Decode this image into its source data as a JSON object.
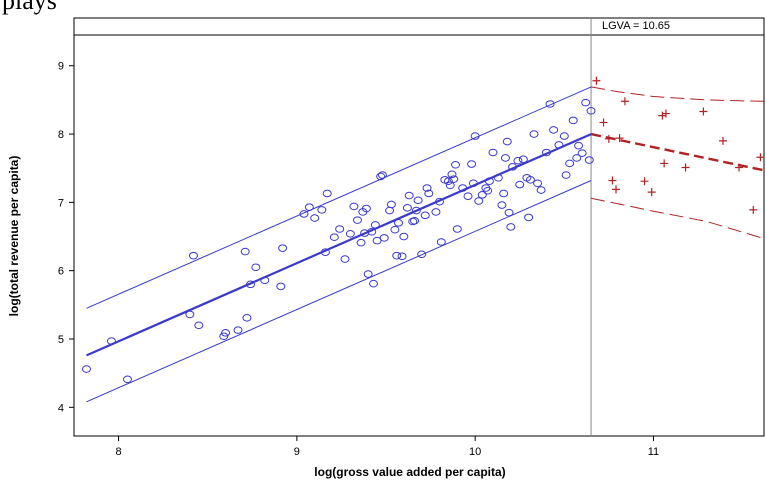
{
  "header": {
    "cropped_text": "plays"
  },
  "chart_data": {
    "type": "scatter",
    "title": "",
    "xlabel": "log(gross value added per capita)",
    "ylabel": "log(total revenue per capita)",
    "xlim": [
      7.75,
      11.62
    ],
    "ylim": [
      3.58,
      9.45
    ],
    "xticks": [
      "8",
      "9",
      "10",
      "11"
    ],
    "yticks": [
      "4",
      "5",
      "6",
      "7",
      "8",
      "9"
    ],
    "grid": false,
    "legend": "none",
    "annotation": {
      "text": "LGVA = 10.65",
      "x": 10.65
    },
    "colors": {
      "observed": "#3a3acc",
      "forecast": "#b22222",
      "frame": "#000000",
      "refline": "#888888"
    },
    "series": [
      {
        "role": "observed",
        "marker": "circle",
        "points": [
          [
            7.82,
            4.56
          ],
          [
            7.96,
            4.97
          ],
          [
            8.05,
            4.41
          ],
          [
            8.4,
            5.36
          ],
          [
            8.42,
            6.22
          ],
          [
            8.45,
            5.2
          ],
          [
            8.59,
            5.04
          ],
          [
            8.6,
            5.09
          ],
          [
            8.67,
            5.13
          ],
          [
            8.71,
            6.28
          ],
          [
            8.72,
            5.31
          ],
          [
            8.74,
            5.8
          ],
          [
            8.77,
            6.05
          ],
          [
            8.82,
            5.86
          ],
          [
            8.91,
            5.77
          ],
          [
            8.92,
            6.33
          ],
          [
            9.04,
            6.83
          ],
          [
            9.07,
            6.93
          ],
          [
            9.1,
            6.77
          ],
          [
            9.14,
            6.89
          ],
          [
            9.16,
            6.27
          ],
          [
            9.17,
            7.13
          ],
          [
            9.21,
            6.49
          ],
          [
            9.24,
            6.61
          ],
          [
            9.27,
            6.17
          ],
          [
            9.3,
            6.54
          ],
          [
            9.32,
            6.94
          ],
          [
            9.34,
            6.74
          ],
          [
            9.36,
            6.41
          ],
          [
            9.37,
            6.86
          ],
          [
            9.38,
            6.55
          ],
          [
            9.39,
            6.91
          ],
          [
            9.4,
            5.95
          ],
          [
            9.42,
            6.57
          ],
          [
            9.43,
            5.81
          ],
          [
            9.44,
            6.67
          ],
          [
            9.45,
            6.44
          ],
          [
            9.47,
            7.38
          ],
          [
            9.48,
            7.4
          ],
          [
            9.49,
            6.48
          ],
          [
            9.52,
            6.88
          ],
          [
            9.53,
            6.97
          ],
          [
            9.55,
            6.6
          ],
          [
            9.56,
            6.22
          ],
          [
            9.57,
            6.7
          ],
          [
            9.59,
            6.21
          ],
          [
            9.6,
            6.5
          ],
          [
            9.62,
            6.92
          ],
          [
            9.63,
            7.1
          ],
          [
            9.65,
            6.72
          ],
          [
            9.66,
            6.73
          ],
          [
            9.67,
            6.88
          ],
          [
            9.68,
            7.03
          ],
          [
            9.7,
            6.24
          ],
          [
            9.72,
            6.81
          ],
          [
            9.73,
            7.21
          ],
          [
            9.74,
            7.13
          ],
          [
            9.78,
            6.86
          ],
          [
            9.8,
            7.01
          ],
          [
            9.81,
            6.42
          ],
          [
            9.83,
            7.33
          ],
          [
            9.85,
            7.31
          ],
          [
            9.86,
            7.25
          ],
          [
            9.87,
            7.41
          ],
          [
            9.88,
            7.34
          ],
          [
            9.89,
            7.55
          ],
          [
            9.9,
            6.61
          ],
          [
            9.93,
            7.21
          ],
          [
            9.96,
            7.09
          ],
          [
            9.98,
            7.56
          ],
          [
            9.99,
            7.28
          ],
          [
            10.0,
            7.97
          ],
          [
            10.02,
            7.02
          ],
          [
            10.04,
            7.11
          ],
          [
            10.06,
            7.21
          ],
          [
            10.07,
            7.17
          ],
          [
            10.08,
            7.31
          ],
          [
            10.1,
            7.73
          ],
          [
            10.13,
            7.36
          ],
          [
            10.15,
            6.96
          ],
          [
            10.16,
            7.13
          ],
          [
            10.17,
            7.65
          ],
          [
            10.18,
            7.89
          ],
          [
            10.19,
            6.85
          ],
          [
            10.2,
            6.64
          ],
          [
            10.21,
            7.52
          ],
          [
            10.24,
            7.61
          ],
          [
            10.25,
            7.26
          ],
          [
            10.27,
            7.63
          ],
          [
            10.29,
            7.36
          ],
          [
            10.3,
            6.78
          ],
          [
            10.31,
            7.33
          ],
          [
            10.33,
            8.0
          ],
          [
            10.35,
            7.28
          ],
          [
            10.37,
            7.18
          ],
          [
            10.4,
            7.73
          ],
          [
            10.42,
            8.44
          ],
          [
            10.44,
            8.06
          ],
          [
            10.47,
            7.84
          ],
          [
            10.5,
            7.97
          ],
          [
            10.51,
            7.4
          ],
          [
            10.53,
            7.57
          ],
          [
            10.55,
            8.2
          ],
          [
            10.57,
            7.65
          ],
          [
            10.58,
            7.83
          ],
          [
            10.6,
            7.72
          ],
          [
            10.62,
            8.46
          ],
          [
            10.64,
            7.62
          ],
          [
            10.65,
            8.34
          ]
        ]
      },
      {
        "role": "forecast",
        "marker": "plus",
        "points": [
          [
            10.68,
            8.78
          ],
          [
            10.72,
            8.17
          ],
          [
            10.75,
            7.93
          ],
          [
            10.77,
            7.32
          ],
          [
            10.79,
            7.19
          ],
          [
            10.81,
            7.94
          ],
          [
            10.84,
            8.48
          ],
          [
            10.95,
            7.31
          ],
          [
            10.99,
            7.15
          ],
          [
            11.05,
            8.27
          ],
          [
            11.06,
            7.57
          ],
          [
            11.07,
            8.3
          ],
          [
            11.18,
            7.51
          ],
          [
            11.28,
            8.33
          ],
          [
            11.39,
            7.9
          ],
          [
            11.48,
            7.51
          ],
          [
            11.56,
            6.89
          ],
          [
            11.6,
            7.66
          ]
        ]
      }
    ],
    "lines": [
      {
        "role": "fit",
        "style": "solid",
        "width": 2.2,
        "points": [
          [
            7.82,
            4.76
          ],
          [
            10.65,
            8.0
          ]
        ]
      },
      {
        "role": "upper-band",
        "style": "thin",
        "width": 1,
        "points": [
          [
            7.82,
            5.45
          ],
          [
            10.65,
            8.69
          ]
        ]
      },
      {
        "role": "lower-band",
        "style": "thin",
        "width": 1,
        "points": [
          [
            7.82,
            4.08
          ],
          [
            10.65,
            7.32
          ]
        ]
      },
      {
        "role": "forecast-fit",
        "style": "dashed-thick",
        "width": 2.4,
        "points": [
          [
            10.65,
            8.0
          ],
          [
            11.62,
            7.47
          ]
        ]
      },
      {
        "role": "forecast-upper",
        "style": "dashed-thin",
        "width": 1,
        "points": [
          [
            10.65,
            8.69
          ],
          [
            10.8,
            8.62
          ],
          [
            11.0,
            8.55
          ],
          [
            11.3,
            8.5
          ],
          [
            11.62,
            8.48
          ]
        ]
      },
      {
        "role": "forecast-lower",
        "style": "dashed-thin",
        "width": 1,
        "points": [
          [
            10.65,
            7.06
          ],
          [
            10.8,
            6.98
          ],
          [
            11.0,
            6.87
          ],
          [
            11.3,
            6.72
          ],
          [
            11.62,
            6.47
          ]
        ]
      }
    ]
  }
}
